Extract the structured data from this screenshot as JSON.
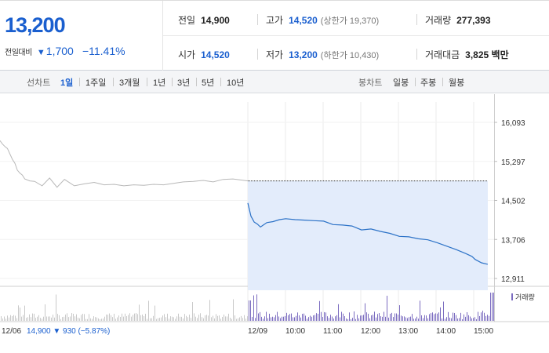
{
  "quote": {
    "price": "13,200",
    "change_label": "전일대비",
    "change_arrow": "▼",
    "change_amount": "1,700",
    "change_percent": "−11.41%"
  },
  "stats": {
    "prev_close": {
      "label": "전일",
      "value": "14,900"
    },
    "high": {
      "label": "고가",
      "value": "14,520",
      "sub": "(상한가 19,370)"
    },
    "volume": {
      "label": "거래량",
      "value": "277,393"
    },
    "open": {
      "label": "시가",
      "value": "14,520"
    },
    "low": {
      "label": "저가",
      "value": "13,200",
      "sub": "(하한가 10,430)"
    },
    "amount": {
      "label": "거래대금",
      "value": "3,825 백만"
    }
  },
  "tabs": {
    "line_label": "선차트",
    "line_items": [
      "1일",
      "1주일",
      "3개월",
      "1년",
      "3년",
      "5년",
      "10년"
    ],
    "line_active": "1일",
    "candle_label": "봉차트",
    "candle_items": [
      "일봉",
      "주봉",
      "월봉"
    ]
  },
  "chart_data": {
    "type": "line",
    "y_ticks": [
      "16,093",
      "15,297",
      "14,502",
      "13,706",
      "12,911"
    ],
    "ylim": [
      12911,
      16093
    ],
    "prev_day_series": {
      "x": [
        0,
        0.01,
        0.02,
        0.03,
        0.04,
        0.05,
        0.06,
        0.07,
        0.08,
        0.09,
        0.1,
        0.12,
        0.14,
        0.17,
        0.2,
        0.23,
        0.26,
        0.3,
        0.34,
        0.38,
        0.42,
        0.46,
        0.5,
        0.54,
        0.58,
        0.62,
        0.66,
        0.7,
        0.74,
        0.78,
        0.82,
        0.86,
        0.9,
        0.94,
        0.97,
        1.0
      ],
      "values": [
        15720,
        15650,
        15600,
        15560,
        15450,
        15340,
        15260,
        15120,
        15060,
        15020,
        14940,
        14900,
        14890,
        14800,
        14960,
        14770,
        14930,
        14800,
        14840,
        14870,
        14820,
        14830,
        14800,
        14820,
        14810,
        14830,
        14820,
        14850,
        14880,
        14890,
        14910,
        14880,
        14930,
        14940,
        14920,
        14900
      ]
    },
    "today_series": {
      "times": [
        "09:00",
        "09:05",
        "09:10",
        "09:15",
        "09:20",
        "09:30",
        "09:40",
        "09:50",
        "10:00",
        "10:15",
        "10:30",
        "10:45",
        "11:00",
        "11:15",
        "11:30",
        "11:45",
        "12:00",
        "12:15",
        "12:30",
        "12:45",
        "13:00",
        "13:15",
        "13:30",
        "13:45",
        "14:00",
        "14:15",
        "14:30",
        "14:45",
        "14:55",
        "15:00",
        "15:10",
        "15:20"
      ],
      "values": [
        14450,
        14180,
        14060,
        14020,
        13960,
        14050,
        14070,
        14110,
        14130,
        14110,
        14100,
        14090,
        14080,
        14010,
        14000,
        13980,
        13900,
        13920,
        13870,
        13830,
        13770,
        13760,
        13720,
        13700,
        13640,
        13570,
        13500,
        13420,
        13360,
        13300,
        13230,
        13200
      ]
    },
    "reference_price": 14900,
    "volume_legend": "거래량",
    "x_ticks_prev": [
      "12/06"
    ],
    "x_ticks_today": [
      "12/09",
      "10:00",
      "11:00",
      "12:00",
      "13:00",
      "14:00",
      "15:00"
    ],
    "prev_summary": {
      "date": "12/06",
      "close": "14,900",
      "arrow": "▼",
      "change": "930",
      "pct": "(−5.87%)"
    }
  }
}
